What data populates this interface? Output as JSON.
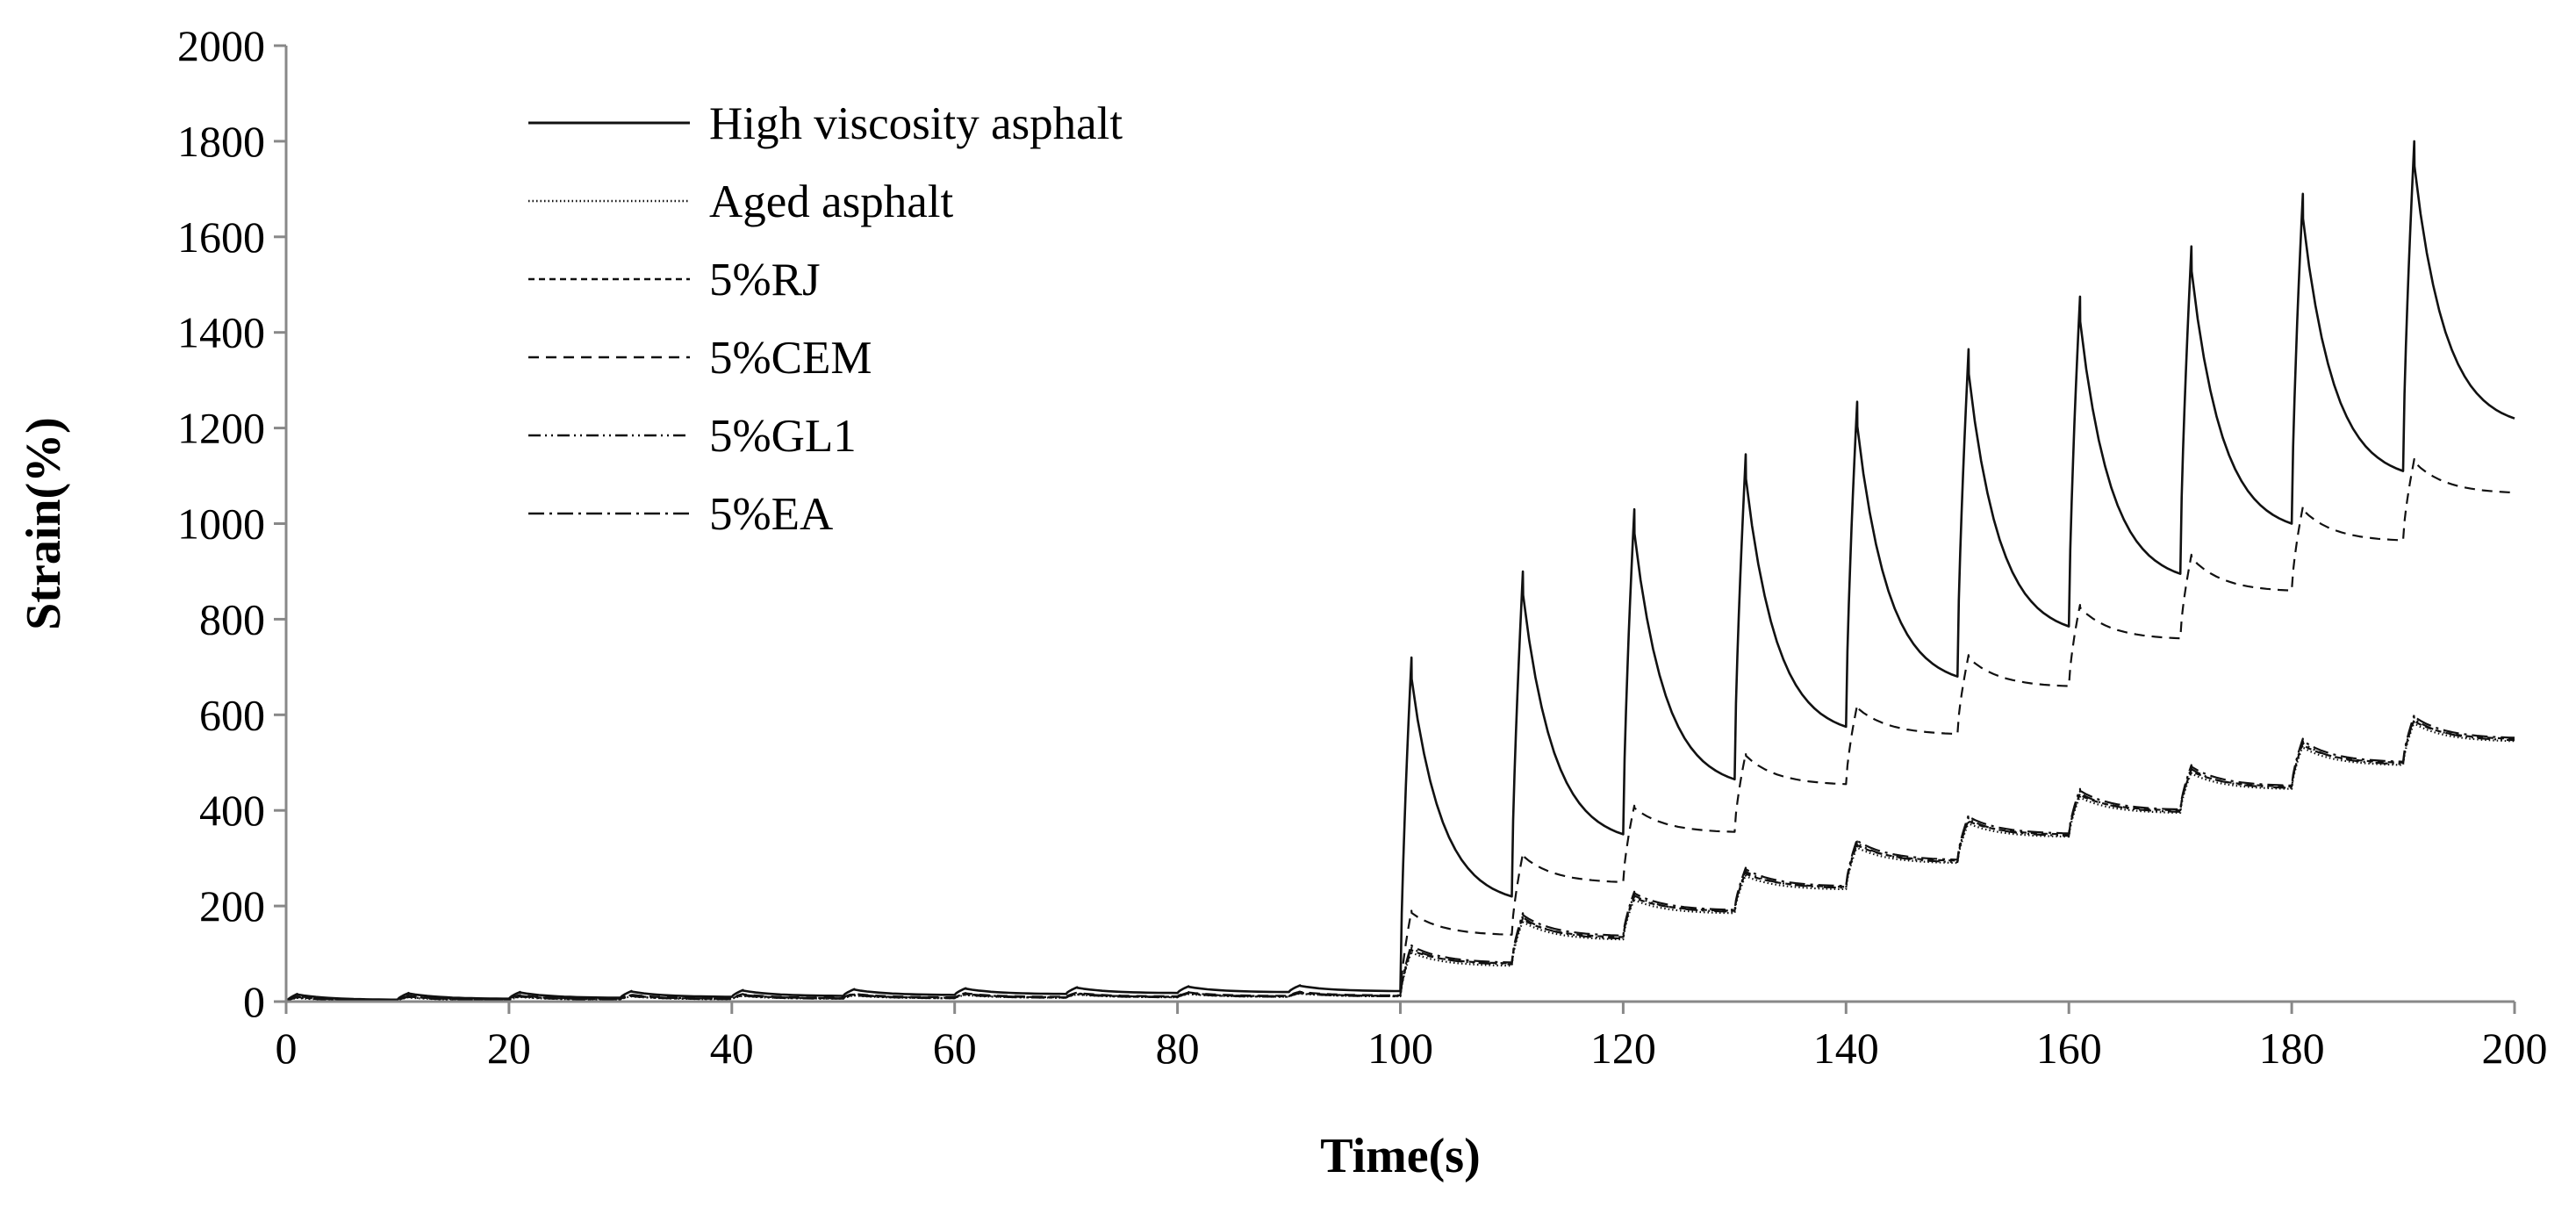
{
  "chart_data": {
    "type": "line",
    "title": "",
    "xlabel": "Time(s)",
    "ylabel": "Strain(%)",
    "xlim": [
      0,
      200
    ],
    "ylim": [
      0,
      2000
    ],
    "xticks": [
      0,
      20,
      40,
      60,
      80,
      100,
      120,
      140,
      160,
      180,
      200
    ],
    "yticks": [
      0,
      200,
      400,
      600,
      800,
      1000,
      1200,
      1400,
      1600,
      1800,
      2000
    ],
    "grid": false,
    "legend_position": "top-left",
    "cycle_length_s": 10,
    "creep_time_s": 1,
    "stress_change_time_s": 100,
    "series": [
      {
        "name": "High viscosity asphalt",
        "dash": "solid",
        "cycle_peaks": [
          16,
          18,
          20,
          22,
          24,
          26,
          28,
          30,
          32,
          34,
          720,
          900,
          1030,
          1145,
          1255,
          1365,
          1475,
          1580,
          1690,
          1800
        ],
        "cycle_ends": [
          4,
          6,
          8,
          10,
          12,
          14,
          16,
          18,
          20,
          22,
          220,
          350,
          465,
          575,
          680,
          785,
          895,
          1000,
          1110,
          1220
        ]
      },
      {
        "name": "Aged asphalt",
        "dash": "dotted",
        "cycle_peaks": [
          8,
          9,
          10,
          11,
          12,
          13,
          14,
          15,
          16,
          17,
          105,
          170,
          215,
          265,
          325,
          375,
          430,
          480,
          535,
          585
        ],
        "cycle_ends": [
          2,
          3,
          4,
          5,
          6,
          7,
          8,
          9,
          10,
          11,
          75,
          130,
          185,
          235,
          290,
          345,
          395,
          445,
          495,
          545
        ]
      },
      {
        "name": "5%RJ",
        "dash": "short-dash",
        "cycle_peaks": [
          10,
          11,
          12,
          13,
          14,
          15,
          16,
          17,
          18,
          19,
          110,
          175,
          220,
          270,
          330,
          380,
          435,
          485,
          540,
          590
        ],
        "cycle_ends": [
          3,
          4,
          5,
          6,
          7,
          8,
          9,
          10,
          11,
          12,
          80,
          135,
          190,
          240,
          295,
          350,
          400,
          450,
          500,
          550
        ]
      },
      {
        "name": "5%CEM",
        "dash": "dash",
        "cycle_peaks": [
          12,
          13,
          14,
          15,
          16,
          17,
          18,
          19,
          20,
          21,
          190,
          310,
          410,
          520,
          620,
          725,
          830,
          935,
          1035,
          1135
        ],
        "cycle_ends": [
          4,
          5,
          6,
          7,
          8,
          9,
          10,
          11,
          12,
          13,
          140,
          250,
          355,
          455,
          560,
          660,
          760,
          860,
          965,
          1065
        ]
      },
      {
        "name": "5%GL1",
        "dash": "dash-dot-dot",
        "cycle_peaks": [
          9,
          10,
          11,
          12,
          13,
          14,
          15,
          16,
          17,
          18,
          115,
          180,
          225,
          275,
          335,
          385,
          440,
          490,
          545,
          595
        ],
        "cycle_ends": [
          2,
          3,
          4,
          5,
          6,
          7,
          8,
          9,
          10,
          11,
          78,
          132,
          188,
          238,
          292,
          347,
          397,
          447,
          497,
          547
        ]
      },
      {
        "name": "5%EA",
        "dash": "dash-dot",
        "cycle_peaks": [
          11,
          12,
          13,
          14,
          15,
          16,
          17,
          18,
          19,
          20,
          120,
          185,
          230,
          280,
          340,
          390,
          445,
          495,
          550,
          600
        ],
        "cycle_ends": [
          3,
          4,
          5,
          6,
          7,
          8,
          9,
          10,
          11,
          12,
          82,
          138,
          192,
          242,
          297,
          352,
          402,
          452,
          502,
          552
        ]
      }
    ]
  }
}
